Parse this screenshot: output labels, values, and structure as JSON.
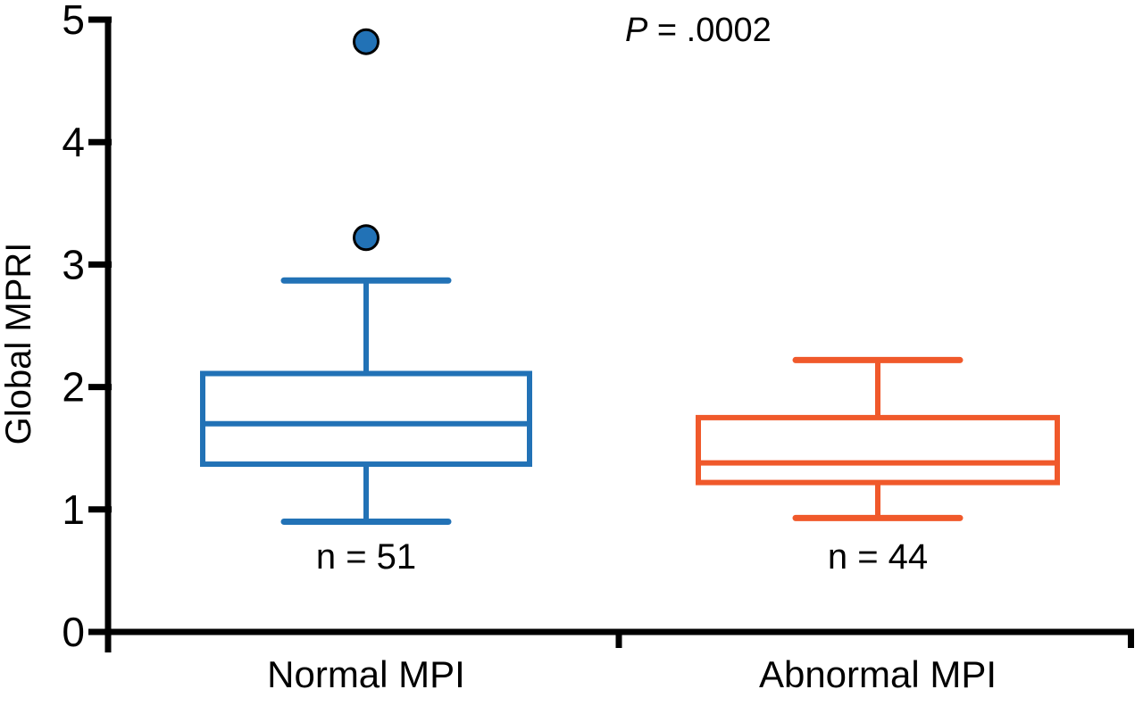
{
  "figure": {
    "ylabel": "Global MPRI",
    "p_italic": "P",
    "p_rest": " = .0002"
  },
  "chart_data": {
    "type": "boxplot",
    "title": "",
    "xlabel": "",
    "ylabel": "Global MPRI",
    "ylim": [
      0,
      5
    ],
    "yticks": [
      0,
      1,
      2,
      3,
      4,
      5
    ],
    "grid": false,
    "annotation": "P = .0002",
    "categories": [
      "Normal MPI",
      "Abnormal MPI"
    ],
    "series": [
      {
        "name": "Normal MPI",
        "n": 51,
        "n_label": "n = 51",
        "color": "#2272B6",
        "whisker_low": 0.9,
        "q1": 1.37,
        "median": 1.7,
        "q3": 2.11,
        "whisker_high": 2.87,
        "outliers": [
          3.22,
          4.82
        ]
      },
      {
        "name": "Abnormal MPI",
        "n": 44,
        "n_label": "n = 44",
        "color": "#F0592B",
        "whisker_low": 0.93,
        "q1": 1.22,
        "median": 1.38,
        "q3": 1.75,
        "whisker_high": 2.22,
        "outliers": []
      }
    ]
  }
}
